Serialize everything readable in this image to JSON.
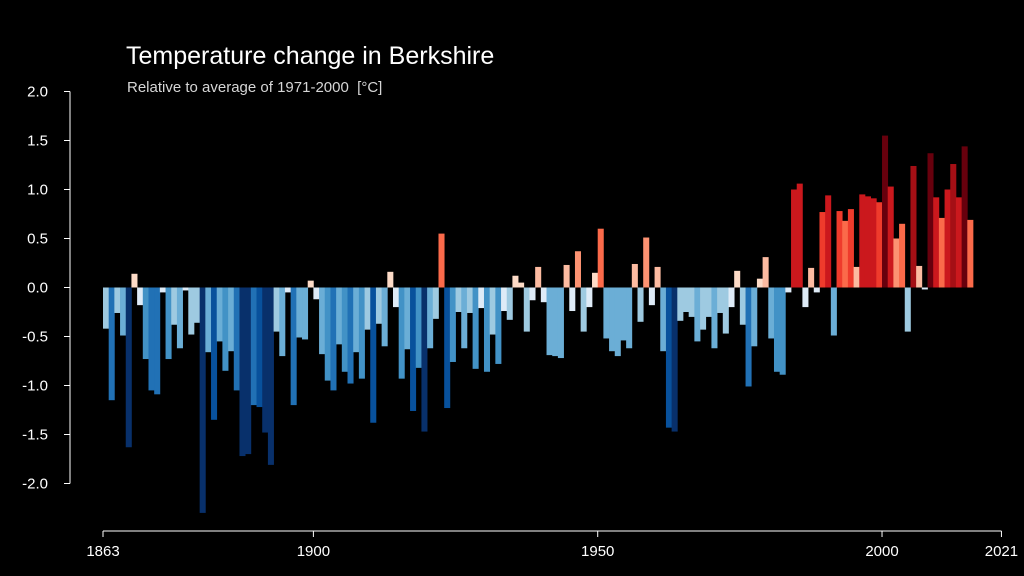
{
  "chart_data": {
    "type": "bar",
    "title": "Temperature change in Berkshire",
    "subtitle": "Relative to average of 1971-2000  [°C]",
    "xlabel": "",
    "ylabel": "",
    "x_start": 1863,
    "x_end": 2021,
    "xlim": [
      1863,
      2021
    ],
    "ylim": [
      -2.3,
      2.0
    ],
    "y_ticks": [
      2.0,
      1.5,
      1.0,
      0.5,
      0.0,
      -0.5,
      -1.0,
      -1.5,
      -2.0
    ],
    "y_tick_labels": [
      "2.0",
      "1.5",
      "1.0",
      "0.5",
      "0.0",
      "-0.5",
      "-1.0",
      "-1.5",
      "-2.0"
    ],
    "x_ticks": [
      1863,
      1900,
      1950,
      2000,
      2021
    ],
    "x_tick_labels": [
      "1863",
      "1900",
      "1950",
      "2000",
      "2021"
    ],
    "grid": false,
    "legend": "none",
    "colors": {
      "background": "#000000",
      "text": "#ffffff",
      "axis": "#ffffff",
      "cold_extreme": "#08306b",
      "cold_mid": "#2171b5",
      "cold_light": "#9ecae1",
      "neutral_warm": "#fddbc7",
      "warm_mid": "#ef3b2c",
      "warm_extreme": "#67000d"
    },
    "values": [
      -0.42,
      -1.15,
      -0.26,
      -0.49,
      -1.63,
      0.14,
      -0.18,
      -0.73,
      -1.05,
      -1.09,
      -0.05,
      -0.73,
      -0.38,
      -0.62,
      -0.03,
      -0.48,
      -0.36,
      -2.3,
      -0.66,
      -1.35,
      -0.55,
      -0.85,
      -0.65,
      -1.05,
      -1.72,
      -1.7,
      -1.2,
      -1.22,
      -1.48,
      -1.81,
      -0.45,
      -0.7,
      -0.05,
      -1.2,
      -0.51,
      -0.53,
      0.07,
      -0.12,
      -0.68,
      -0.95,
      -1.05,
      -0.58,
      -0.86,
      -0.98,
      -0.66,
      -0.93,
      -0.43,
      -1.38,
      -0.37,
      -0.6,
      0.16,
      -0.2,
      -0.93,
      -0.63,
      -1.26,
      -0.82,
      -1.47,
      -0.62,
      -0.32,
      0.55,
      -1.23,
      -0.76,
      -0.25,
      -0.62,
      -0.26,
      -0.83,
      -0.21,
      -0.86,
      -0.48,
      -0.78,
      -0.24,
      -0.33,
      0.12,
      0.05,
      -0.45,
      -0.13,
      0.21,
      -0.15,
      -0.69,
      -0.7,
      -0.72,
      0.23,
      -0.24,
      0.37,
      -0.45,
      -0.2,
      0.15,
      0.6,
      -0.52,
      -0.65,
      -0.7,
      -0.54,
      -0.62,
      0.24,
      -0.35,
      0.51,
      -0.18,
      0.21,
      -0.65,
      -1.43,
      -1.47,
      -0.34,
      -0.25,
      -0.3,
      -0.55,
      -0.43,
      -0.3,
      -0.62,
      -0.26,
      -0.47,
      -0.2,
      0.17,
      -0.38,
      -1.01,
      -0.6,
      0.09,
      0.31,
      -0.52,
      -0.86,
      -0.89,
      -0.05,
      1.0,
      1.06,
      -0.2,
      0.2,
      -0.05,
      0.77,
      0.94,
      -0.49,
      0.78,
      0.68,
      0.8,
      0.21,
      0.95,
      0.93,
      0.91,
      0.87,
      1.55,
      1.03,
      0.5,
      0.65,
      -0.45,
      1.24,
      0.22,
      -0.02,
      1.37,
      0.92,
      0.71,
      1.0,
      1.26,
      0.92,
      1.44,
      0.69
    ]
  }
}
